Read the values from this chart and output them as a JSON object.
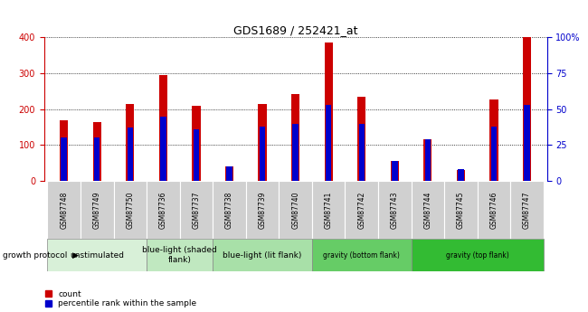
{
  "title": "GDS1689 / 252421_at",
  "samples": [
    "GSM87748",
    "GSM87749",
    "GSM87750",
    "GSM87736",
    "GSM87737",
    "GSM87738",
    "GSM87739",
    "GSM87740",
    "GSM87741",
    "GSM87742",
    "GSM87743",
    "GSM87744",
    "GSM87745",
    "GSM87746",
    "GSM87747"
  ],
  "counts": [
    170,
    163,
    214,
    294,
    210,
    40,
    215,
    242,
    385,
    235,
    55,
    115,
    30,
    227,
    400
  ],
  "percentiles": [
    30,
    30,
    37,
    45,
    36,
    10,
    38,
    40,
    53,
    40,
    14,
    29,
    8,
    38,
    53
  ],
  "groups": [
    {
      "label": "unstimulated",
      "start": 0,
      "end": 3,
      "color": "#d8f0d8"
    },
    {
      "label": "blue-light (shaded\nflank)",
      "start": 3,
      "end": 5,
      "color": "#c0e8c0"
    },
    {
      "label": "blue-light (lit flank)",
      "start": 5,
      "end": 8,
      "color": "#a8e0a8"
    },
    {
      "label": "gravity (bottom flank)",
      "start": 8,
      "end": 11,
      "color": "#66cc66"
    },
    {
      "label": "gravity (top flank)",
      "start": 11,
      "end": 15,
      "color": "#33bb33"
    }
  ],
  "ylim_left": [
    0,
    400
  ],
  "ylim_right": [
    0,
    100
  ],
  "yticks_left": [
    0,
    100,
    200,
    300,
    400
  ],
  "yticks_right": [
    0,
    25,
    50,
    75,
    100
  ],
  "count_color": "#cc0000",
  "percentile_color": "#0000cc",
  "bar_width": 0.25,
  "legend_items": [
    "count",
    "percentile rank within the sample"
  ],
  "growth_protocol_label": "growth protocol"
}
